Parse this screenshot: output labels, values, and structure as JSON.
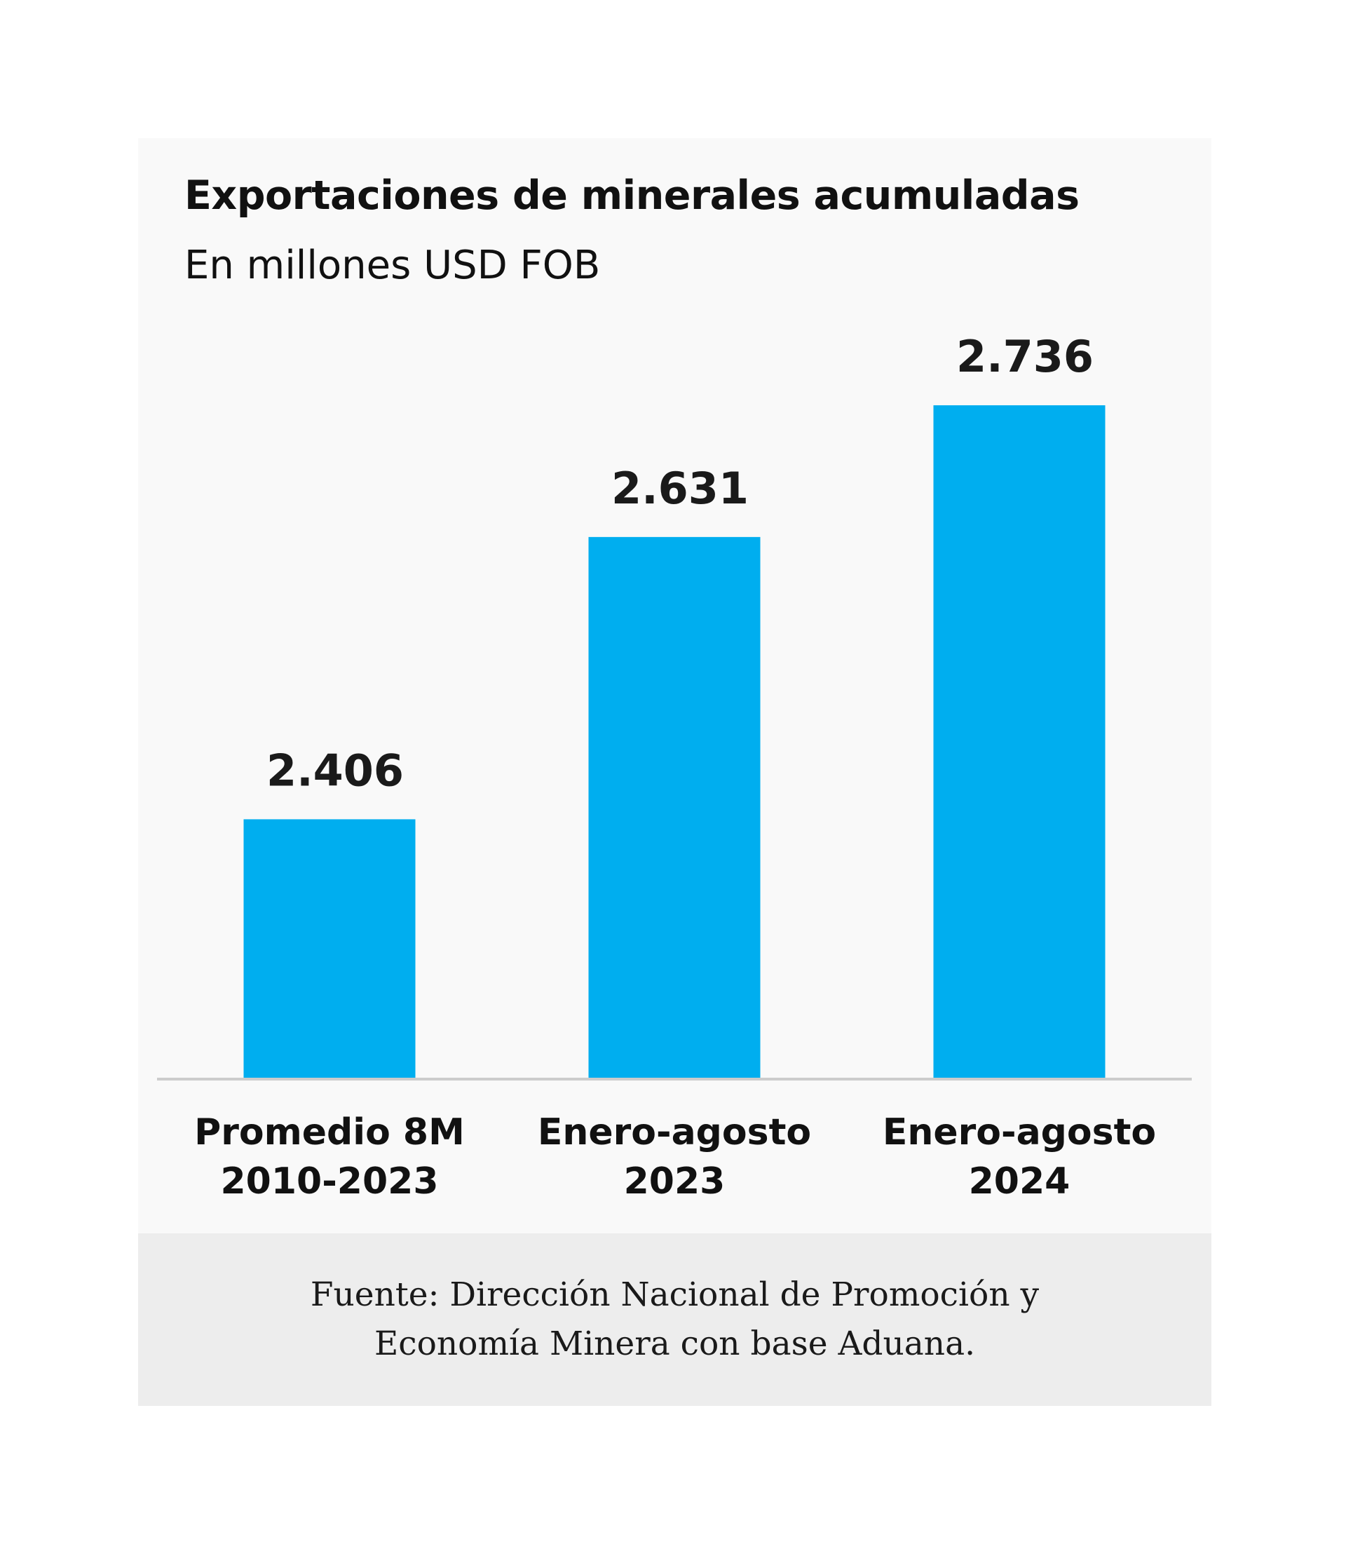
{
  "chart_data": {
    "type": "bar",
    "title": "Exportaciones de minerales acumuladas",
    "subtitle": "En millones USD FOB",
    "categories": [
      [
        "Promedio 8M",
        "2010-2023"
      ],
      [
        "Enero-agosto",
        "2023"
      ],
      [
        "Enero-agosto",
        "2024"
      ]
    ],
    "values": [
      2406,
      2631,
      2736
    ],
    "value_labels": [
      "2.406",
      "2.631",
      "2.736"
    ],
    "xlabel": "",
    "ylabel": "",
    "ylim": [
      2200,
      2736
    ],
    "grid": false,
    "legend": "none",
    "bar_color": "#00aeef",
    "axis_color": "#cccccc",
    "source_lines": [
      "Fuente: Dirección Nacional de Promoción y",
      "Economía Minera con base Aduana."
    ]
  }
}
